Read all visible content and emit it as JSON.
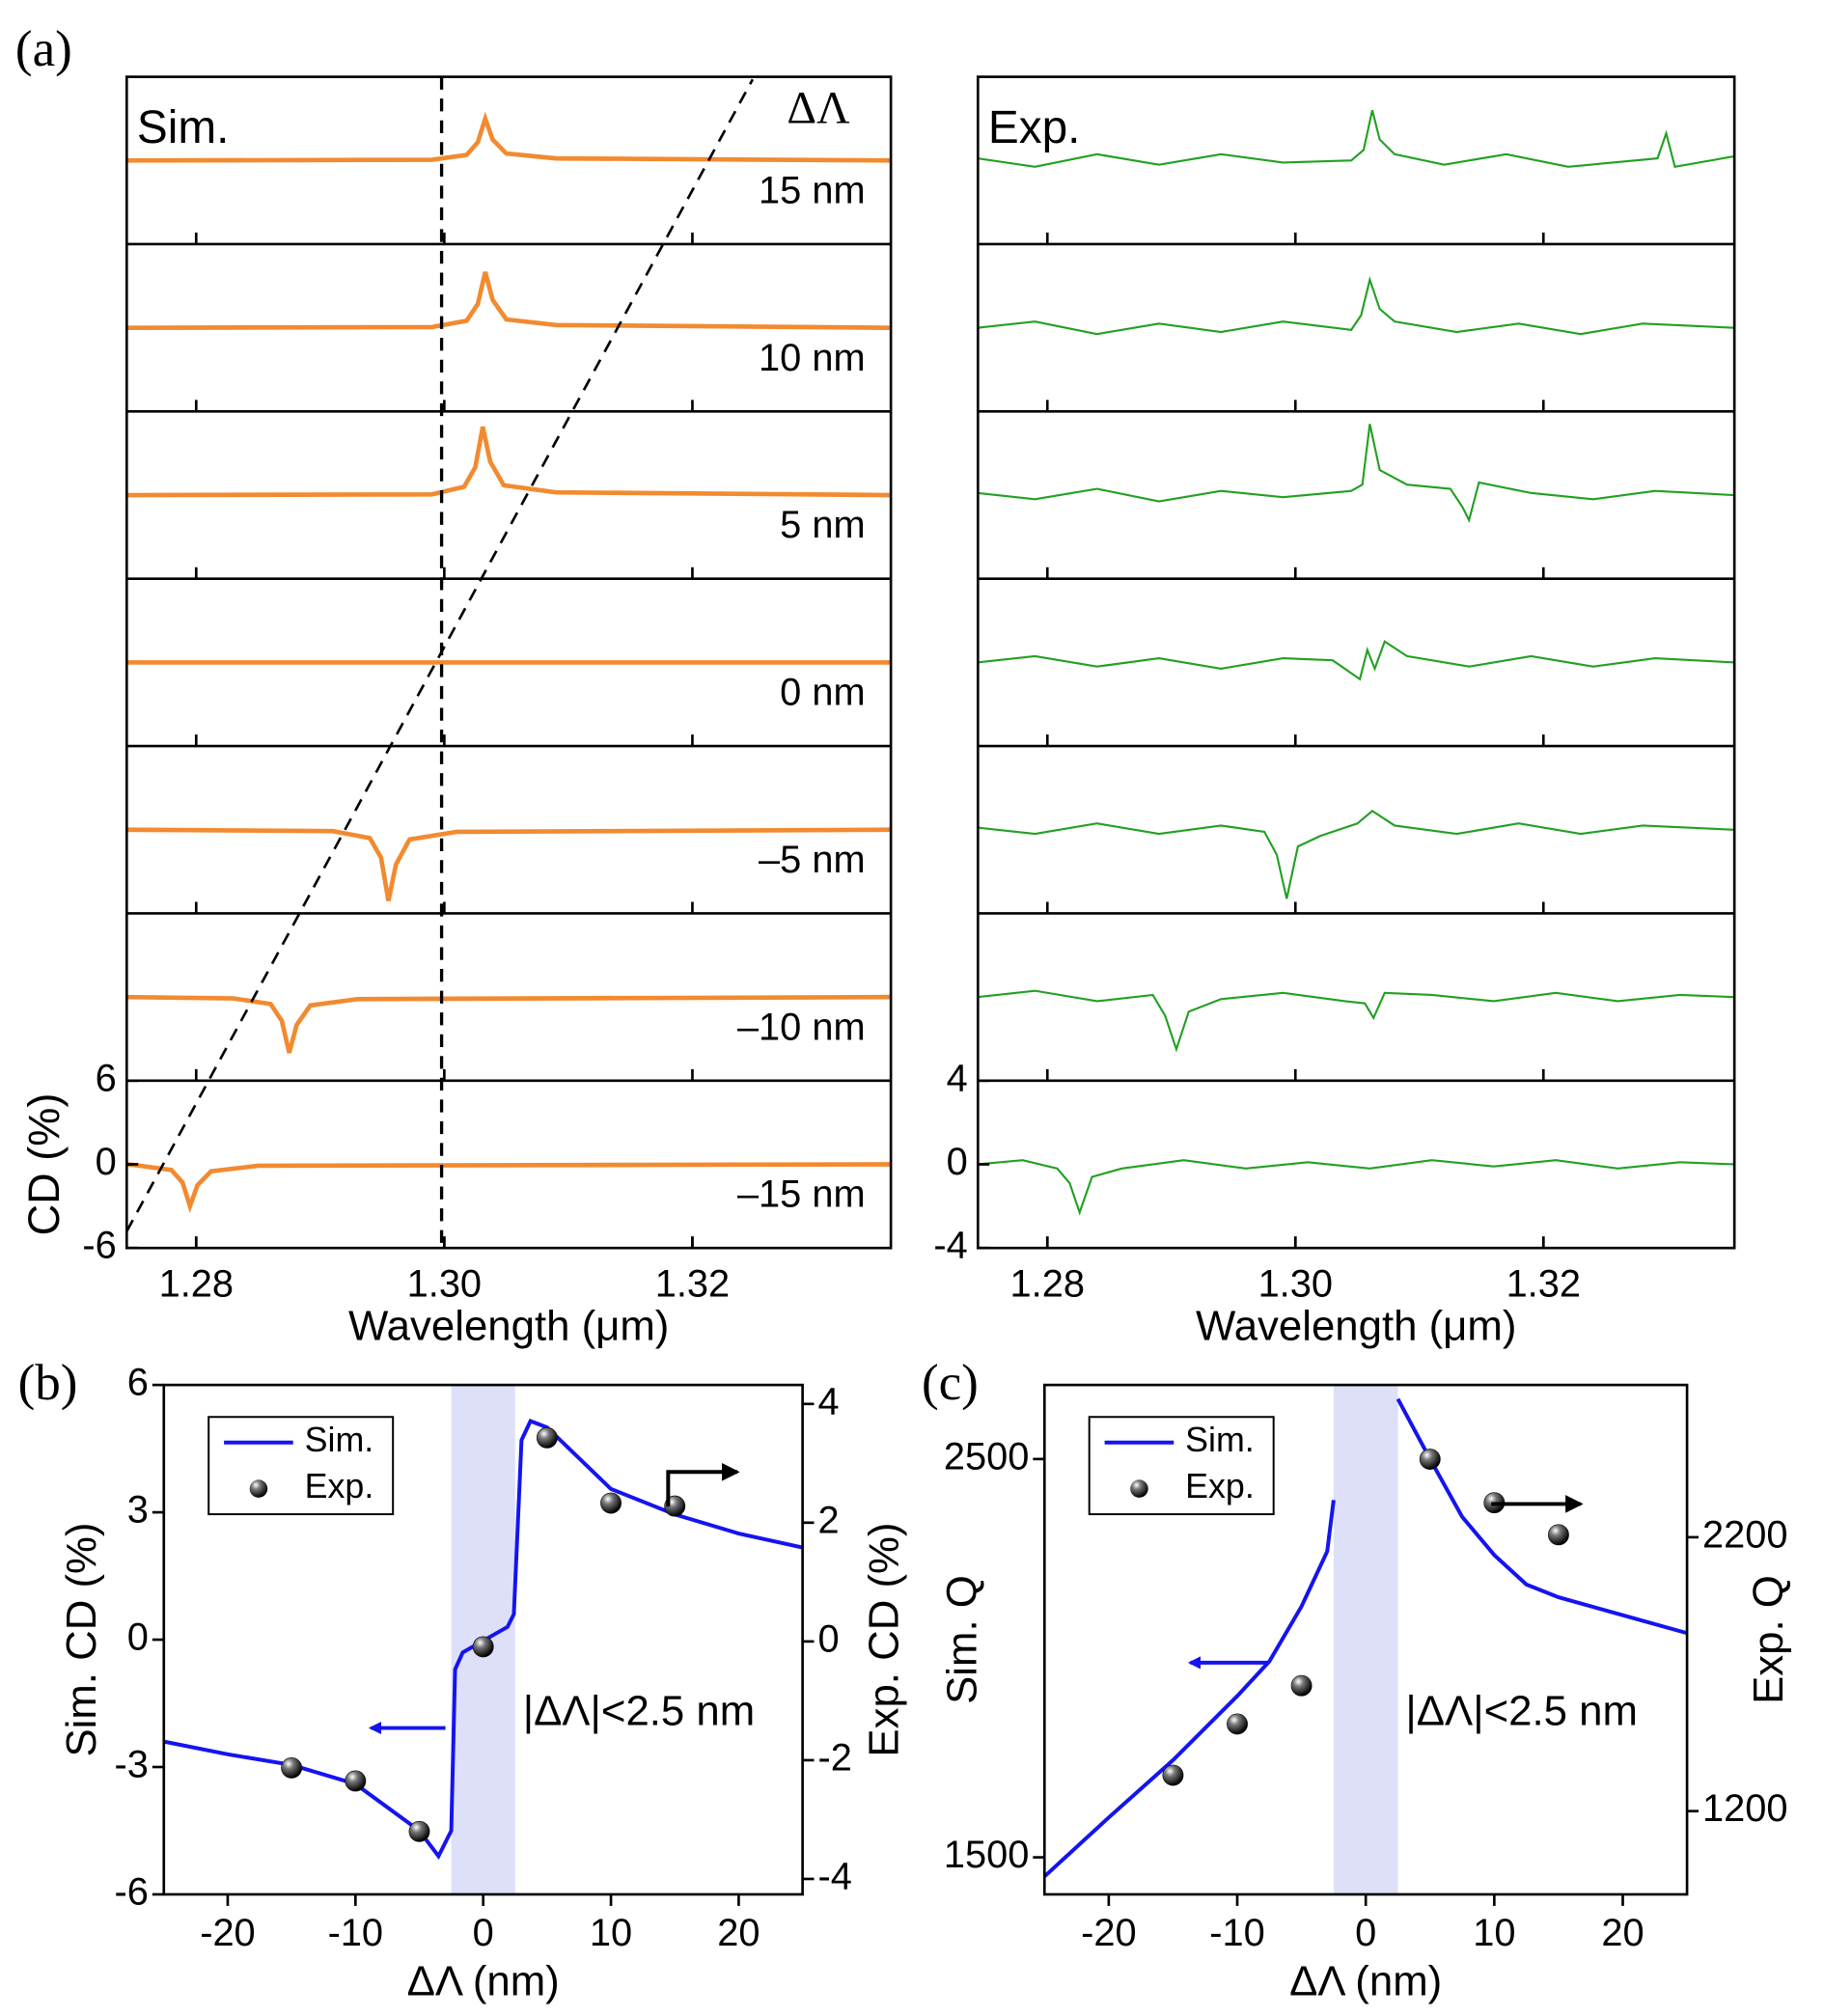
{
  "chart_data": [
    {
      "type": "offset_line",
      "panel": "(a)",
      "label": "Sim.",
      "annotation": "ΔΛ",
      "xlabel": "Wavelength (μm)",
      "ylabel": "CD (%)",
      "xlim": [
        1.2744,
        1.336
      ],
      "xticks": [
        1.28,
        {
          "value": 1.3,
          "label": "1.30"
        },
        1.32
      ],
      "ylim": [
        -6,
        6
      ],
      "yticks": [
        6,
        0,
        -6
      ],
      "series": [
        {
          "name": "15 nm",
          "color": "#f28a30",
          "x": [
            1.2744,
            1.299,
            1.3018,
            1.3027,
            1.3033,
            1.3039,
            1.305,
            1.309,
            1.336
          ],
          "values": [
            0,
            0.05,
            0.4,
            1.3,
            3.0,
            1.5,
            0.5,
            0.15,
            0
          ]
        },
        {
          "name": "10 nm",
          "color": "#f28a30",
          "x": [
            1.2744,
            1.299,
            1.3018,
            1.3027,
            1.3033,
            1.3039,
            1.305,
            1.309,
            1.336
          ],
          "values": [
            0,
            0.05,
            0.5,
            1.7,
            4.0,
            2.0,
            0.6,
            0.2,
            0
          ]
        },
        {
          "name": "5 nm",
          "color": "#f28a30",
          "x": [
            1.2744,
            1.299,
            1.3016,
            1.3025,
            1.3031,
            1.3037,
            1.3048,
            1.309,
            1.336
          ],
          "values": [
            0,
            0.05,
            0.6,
            2.0,
            4.9,
            2.4,
            0.7,
            0.2,
            0
          ]
        },
        {
          "name": "0 nm",
          "color": "#f28a30",
          "x": [
            1.2744,
            1.336
          ],
          "values": [
            0,
            0
          ]
        },
        {
          "name": "–5 nm",
          "color": "#f28a30",
          "x": [
            1.2744,
            1.291,
            1.294,
            1.2949,
            1.2955,
            1.2961,
            1.2972,
            1.301,
            1.336
          ],
          "values": [
            0,
            -0.1,
            -0.6,
            -2.0,
            -5.1,
            -2.5,
            -0.7,
            -0.15,
            0
          ]
        },
        {
          "name": "–10 nm",
          "color": "#f28a30",
          "x": [
            1.2744,
            1.283,
            1.286,
            1.2869,
            1.2875,
            1.2881,
            1.2892,
            1.293,
            1.336
          ],
          "values": [
            0,
            -0.1,
            -0.5,
            -1.7,
            -4.0,
            -2.0,
            -0.6,
            -0.15,
            0
          ]
        },
        {
          "name": "–15 nm",
          "color": "#f28a30",
          "x": [
            1.2744,
            1.275,
            1.278,
            1.2789,
            1.2795,
            1.2801,
            1.2812,
            1.285,
            1.336
          ],
          "values": [
            0,
            -0.05,
            -0.4,
            -1.3,
            -3.0,
            -1.5,
            -0.5,
            -0.1,
            0
          ]
        }
      ]
    },
    {
      "type": "offset_line",
      "label": "Exp.",
      "xlabel": "Wavelength (μm)",
      "xlim": [
        1.2744,
        1.3354
      ],
      "xticks": [
        1.28,
        {
          "value": 1.3,
          "label": "1.30"
        },
        1.32
      ],
      "ylim": [
        -4,
        4
      ],
      "yticks": [
        4,
        0,
        -4
      ],
      "series": [
        {
          "color": "#22a022",
          "x": [
            1.2744,
            1.279,
            1.284,
            1.289,
            1.294,
            1.299,
            1.3045,
            1.3055,
            1.3062,
            1.3068,
            1.308,
            1.312,
            1.317,
            1.322,
            1.3292,
            1.3299,
            1.3306,
            1.3354
          ],
          "values": [
            0.1,
            -0.3,
            0.3,
            -0.2,
            0.3,
            -0.1,
            0.0,
            0.5,
            2.4,
            1.0,
            0.3,
            -0.2,
            0.3,
            -0.3,
            0.1,
            1.3,
            -0.3,
            0.2
          ]
        },
        {
          "color": "#22a022",
          "x": [
            1.2744,
            1.279,
            1.284,
            1.289,
            1.294,
            1.299,
            1.3045,
            1.3053,
            1.306,
            1.3068,
            1.308,
            1.313,
            1.318,
            1.323,
            1.328,
            1.3354
          ],
          "values": [
            0.0,
            0.3,
            -0.3,
            0.2,
            -0.2,
            0.3,
            -0.1,
            0.6,
            2.3,
            0.9,
            0.3,
            -0.2,
            0.2,
            -0.3,
            0.2,
            0.0
          ]
        },
        {
          "color": "#22a022",
          "x": [
            1.2744,
            1.279,
            1.284,
            1.289,
            1.294,
            1.299,
            1.3045,
            1.3054,
            1.306,
            1.3068,
            1.309,
            1.3125,
            1.3135,
            1.314,
            1.3148,
            1.319,
            1.324,
            1.329,
            1.3354
          ],
          "values": [
            0.1,
            -0.2,
            0.3,
            -0.3,
            0.2,
            -0.1,
            0.2,
            0.5,
            3.4,
            1.2,
            0.5,
            0.3,
            -0.6,
            -1.2,
            0.6,
            0.1,
            -0.2,
            0.2,
            0.0
          ]
        },
        {
          "color": "#22a022",
          "x": [
            1.2744,
            1.279,
            1.284,
            1.289,
            1.294,
            1.299,
            1.303,
            1.3052,
            1.3058,
            1.3064,
            1.3072,
            1.309,
            1.314,
            1.319,
            1.324,
            1.329,
            1.3354
          ],
          "values": [
            0.0,
            0.3,
            -0.2,
            0.2,
            -0.3,
            0.2,
            0.1,
            -0.8,
            0.6,
            -0.3,
            1.0,
            0.3,
            -0.2,
            0.3,
            -0.2,
            0.2,
            0.0
          ]
        },
        {
          "color": "#22a022",
          "x": [
            1.2744,
            1.279,
            1.284,
            1.289,
            1.294,
            1.2975,
            1.2985,
            1.2993,
            1.3002,
            1.302,
            1.305,
            1.3062,
            1.308,
            1.313,
            1.318,
            1.323,
            1.328,
            1.3354
          ],
          "values": [
            0.1,
            -0.2,
            0.3,
            -0.2,
            0.2,
            -0.1,
            -1.2,
            -3.3,
            -0.8,
            -0.3,
            0.3,
            0.9,
            0.2,
            -0.2,
            0.3,
            -0.2,
            0.2,
            0.0
          ]
        },
        {
          "color": "#22a022",
          "x": [
            1.2744,
            1.279,
            1.284,
            1.2885,
            1.2895,
            1.2904,
            1.2914,
            1.294,
            1.299,
            1.304,
            1.3056,
            1.3063,
            1.3072,
            1.311,
            1.316,
            1.321,
            1.326,
            1.331,
            1.3354
          ],
          "values": [
            0.0,
            0.3,
            -0.2,
            0.1,
            -0.9,
            -2.5,
            -0.7,
            -0.1,
            0.2,
            -0.2,
            -0.3,
            -1.0,
            0.2,
            0.1,
            -0.2,
            0.2,
            -0.2,
            0.1,
            0.0
          ]
        },
        {
          "color": "#22a022",
          "x": [
            1.2744,
            1.278,
            1.2808,
            1.2818,
            1.2826,
            1.2836,
            1.286,
            1.291,
            1.296,
            1.301,
            1.306,
            1.311,
            1.316,
            1.321,
            1.326,
            1.331,
            1.3354
          ],
          "values": [
            0.0,
            0.2,
            -0.2,
            -0.9,
            -2.3,
            -0.6,
            -0.2,
            0.2,
            -0.2,
            0.1,
            -0.2,
            0.2,
            -0.1,
            0.2,
            -0.2,
            0.1,
            0.0
          ]
        }
      ]
    },
    {
      "type": "dual",
      "panel": "(b)",
      "xlabel": "ΔΛ (nm)",
      "ylabel": "Sim. CD (%)",
      "y2label": "Exp. CD (%)",
      "annotation": "|ΔΛ|<2.5 nm",
      "band": [
        -2.5,
        2.5
      ],
      "legend": "upper left",
      "xlim": [
        -25,
        25
      ],
      "xticks": [
        -20,
        -10,
        0,
        10,
        20
      ],
      "ylim": [
        -6,
        6
      ],
      "yticks": [
        -6,
        -3,
        0,
        3,
        6
      ],
      "y2lim": [
        -4.26,
        4.32
      ],
      "y2ticks": [
        -4,
        -2,
        0,
        2,
        4
      ],
      "series": [
        {
          "name": "Sim.",
          "type": "line",
          "color": "#1414f0",
          "x": [
            -25,
            -20,
            -15,
            -10,
            -5,
            -3.5,
            -2.5,
            -2.2,
            -1.6,
            1.9,
            2.4,
            3.0,
            3.7,
            5,
            10,
            15,
            20,
            25
          ],
          "values": [
            -2.4,
            -2.7,
            -2.95,
            -3.4,
            -4.5,
            -5.1,
            -4.5,
            -0.7,
            -0.3,
            0.3,
            0.6,
            4.7,
            5.15,
            5.0,
            3.55,
            2.95,
            2.5,
            2.17
          ]
        },
        {
          "name": "Exp.",
          "type": "scatter",
          "axis": "y2",
          "color": "#111111",
          "x": [
            -15,
            -10,
            -5,
            0,
            5,
            10,
            15
          ],
          "values": [
            -2.13,
            -2.35,
            -3.2,
            -0.09,
            3.43,
            2.33,
            2.28
          ]
        }
      ]
    },
    {
      "type": "dual",
      "panel": "(c)",
      "xlabel": "ΔΛ (nm)",
      "ylabel": "Sim. Q",
      "y2label": "Exp. Q",
      "annotation": "|ΔΛ|<2.5 nm",
      "band": [
        -2.5,
        2.5
      ],
      "legend": "upper left",
      "xlim": [
        -25,
        25
      ],
      "xticks": [
        -20,
        -10,
        0,
        10,
        20
      ],
      "ylim": [
        1407,
        2686
      ],
      "yticks": [
        1500,
        2500
      ],
      "y2lim": [
        896,
        2756
      ],
      "y2ticks": [
        1200,
        2200
      ],
      "series": [
        {
          "name": "Sim.",
          "type": "line",
          "color": "#1414f0",
          "x": [
            -25,
            -20,
            -15,
            -10,
            -7.5,
            -5,
            -3,
            -2.5,
            0,
            2.5,
            5,
            7.5,
            10,
            12.5,
            15,
            20,
            25
          ],
          "values": [
            1452,
            1600,
            1744,
            1905,
            1992,
            2130,
            2268,
            2397,
            null,
            2651,
            2500,
            2355,
            2259,
            2185,
            2153,
            2108,
            2063
          ]
        },
        {
          "name": "Exp.",
          "type": "scatter",
          "axis": "y2",
          "color": "#111111",
          "x": [
            -15,
            -10,
            -5,
            5,
            10,
            15
          ],
          "values": [
            1331,
            1518,
            1658,
            2485,
            2326,
            2209
          ]
        }
      ]
    }
  ]
}
